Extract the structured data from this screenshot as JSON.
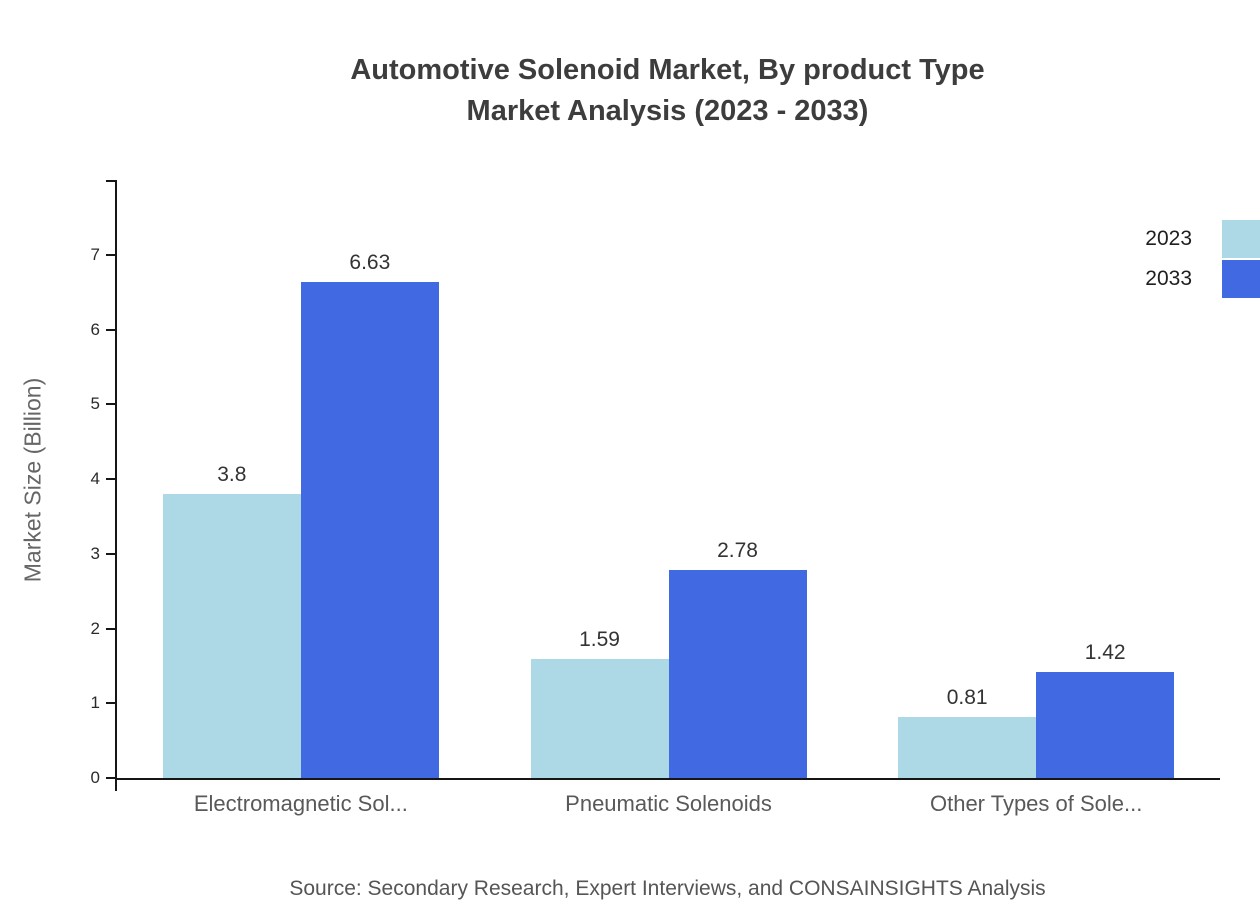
{
  "title": {
    "line1": "Automotive Solenoid Market, By product Type",
    "line2": "Market Analysis (2023 - 2033)"
  },
  "source_note": "Source: Secondary Research, Expert Interviews, and CONSAINSIGHTS Analysis",
  "chart_data": {
    "type": "bar",
    "title": "Automotive Solenoid Market, By product Type Market Analysis (2023 - 2033)",
    "categories": [
      "Electromagnetic Sol...",
      "Pneumatic Solenoids",
      "Other Types of Sole..."
    ],
    "series": [
      {
        "name": "2023",
        "color": "#ADD8E6",
        "values": [
          3.8,
          1.59,
          0.81
        ]
      },
      {
        "name": "2033",
        "color": "#4169E1",
        "values": [
          6.63,
          2.78,
          1.42
        ]
      }
    ],
    "xlabel": "",
    "ylabel": "Market Size (Billion)",
    "ylim": [
      0,
      8
    ],
    "yticks": [
      0,
      1,
      2,
      3,
      4,
      5,
      6,
      7
    ],
    "grid": false,
    "bar_value_labels": true,
    "legend_position": "top-right"
  }
}
